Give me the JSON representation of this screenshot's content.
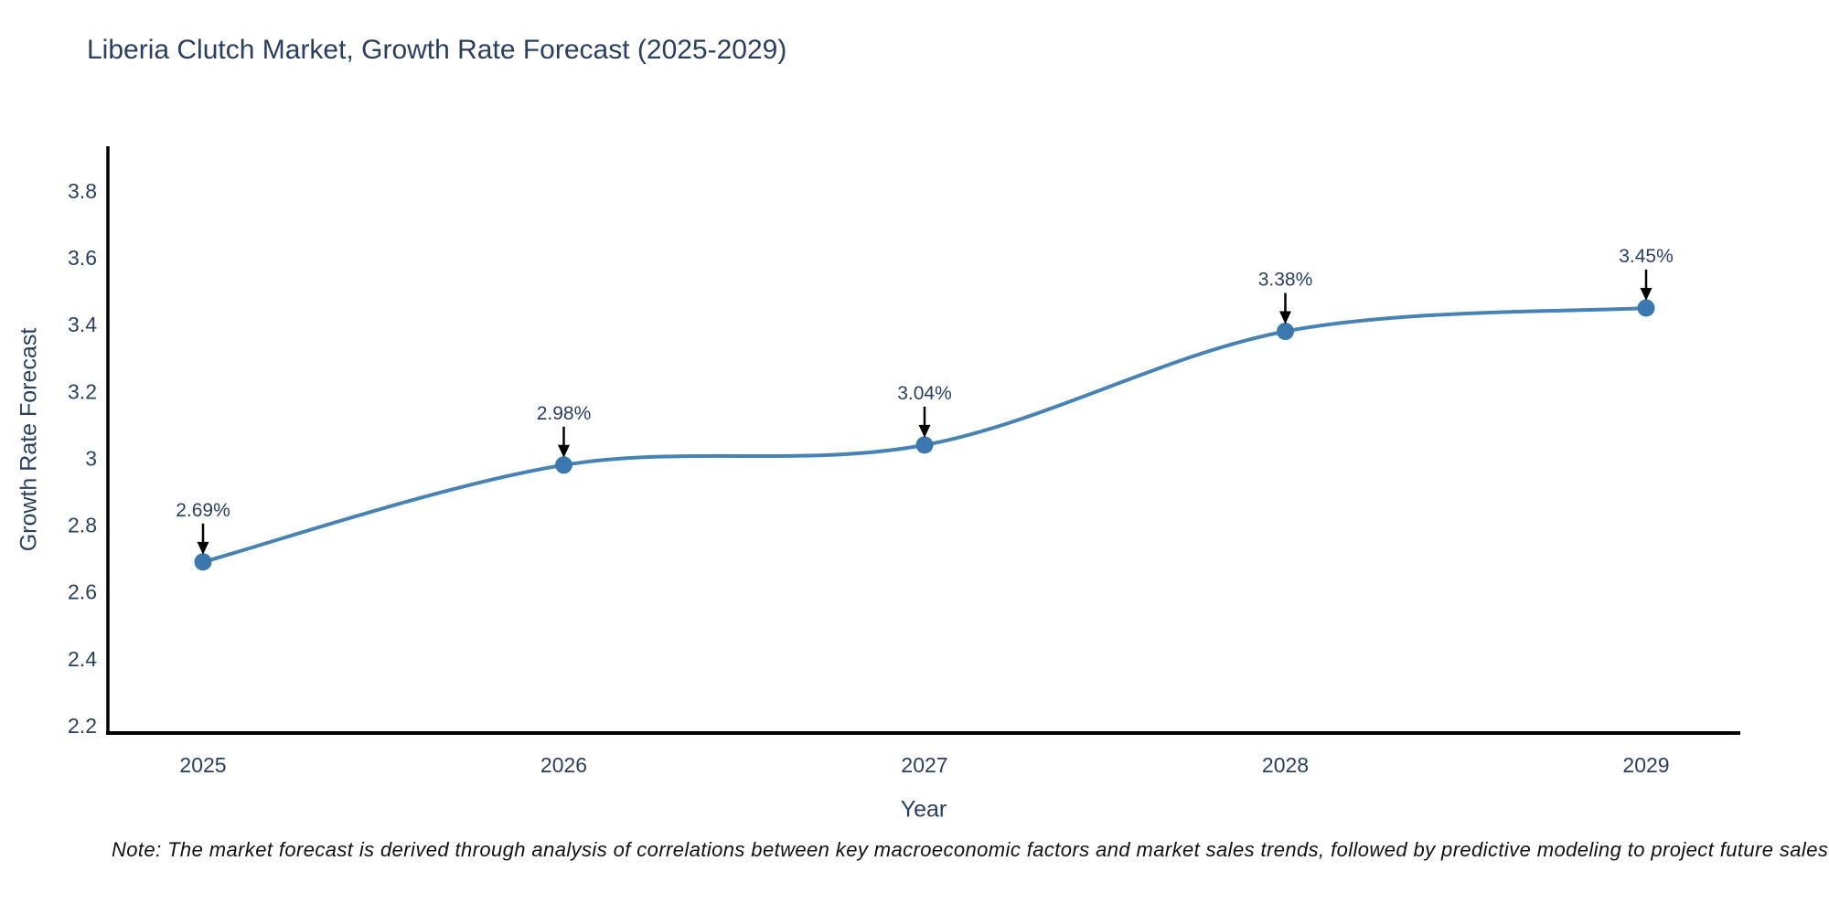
{
  "chart": {
    "title": "Liberia Clutch Market, Growth Rate Forecast (2025-2029)",
    "xlabel": "Year",
    "ylabel": "Growth Rate Forecast",
    "note": "Note: The market forecast is derived through analysis of correlations between key macroeconomic factors and market sales trends, followed by predictive modeling to project future sales"
  },
  "chart_data": {
    "type": "line",
    "title": "Liberia Clutch Market, Growth Rate Forecast (2025-2029)",
    "xlabel": "Year",
    "ylabel": "Growth Rate Forecast",
    "x": [
      "2025",
      "2026",
      "2027",
      "2028",
      "2029"
    ],
    "series": [
      {
        "name": "Growth Rate Forecast",
        "values": [
          2.69,
          2.98,
          3.04,
          3.38,
          3.45
        ]
      }
    ],
    "point_labels": [
      "2.69%",
      "2.98%",
      "3.04%",
      "3.38%",
      "3.45%"
    ],
    "yticks": [
      2.2,
      2.4,
      2.6,
      2.8,
      3,
      3.2,
      3.4,
      3.6,
      3.8
    ],
    "ytick_labels": [
      "2.2",
      "2.4",
      "2.6",
      "2.8",
      "3",
      "3.2",
      "3.4",
      "3.6",
      "3.8"
    ],
    "ylim": [
      2.178,
      3.94
    ],
    "line_shape": "spline",
    "grid": false,
    "legend": false,
    "colors": {
      "line": "#4682b4",
      "marker": "#3c78b0",
      "text": "#2a3f5f",
      "axis": "#000000",
      "arrow": "#000000",
      "note_text": "#111111"
    }
  }
}
